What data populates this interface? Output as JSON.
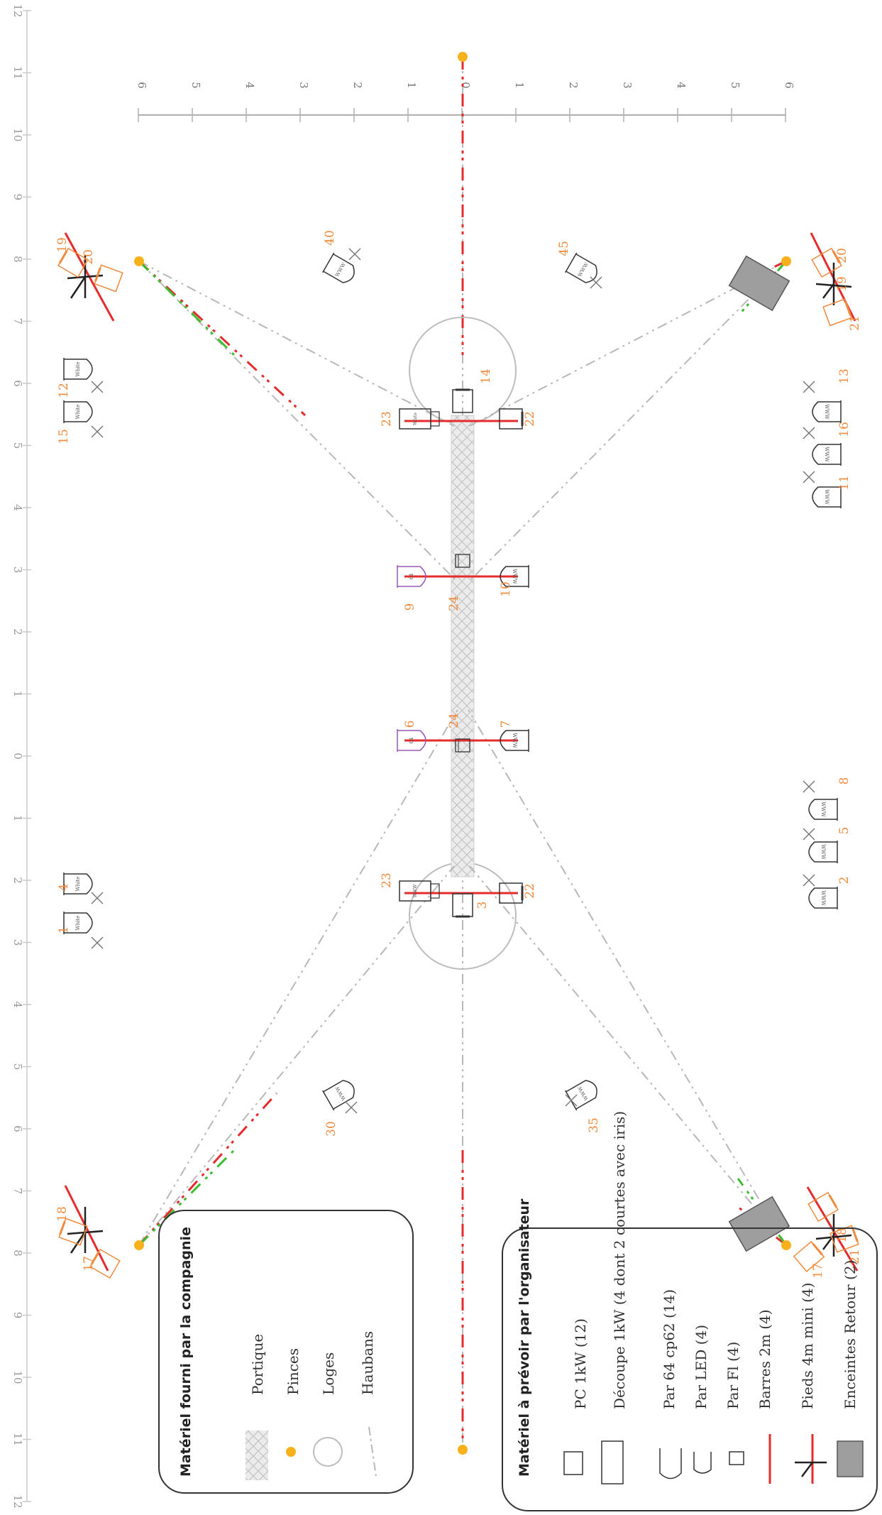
{
  "scale": {
    "main_axis_ticks": [
      "12",
      "11",
      "10",
      "9",
      "8",
      "7",
      "6",
      "5",
      "4",
      "3",
      "2",
      "1",
      "0",
      "1",
      "2",
      "3",
      "4",
      "5",
      "6",
      "7",
      "8",
      "9",
      "10",
      "11",
      "12"
    ],
    "cross_axis_ticks": [
      "6",
      "5",
      "4",
      "3",
      "2",
      "1",
      "0",
      "1",
      "2",
      "3",
      "4",
      "5",
      "6"
    ]
  },
  "fixture_numbers": {
    "n1": "1",
    "n2": "2",
    "n3": "3",
    "n4": "4",
    "n5": "5",
    "n6": "6",
    "n7": "7",
    "n8": "8",
    "n9": "9",
    "n10": "10",
    "n11": "11",
    "n12": "12",
    "n13": "13",
    "n14": "14",
    "n15": "15",
    "n16": "16",
    "n17": "17",
    "n18": "18",
    "n19": "19",
    "n20": "20",
    "n21": "21",
    "n22": "22",
    "n23": "23",
    "n24": "24",
    "n30": "30",
    "n35": "35",
    "n40": "40",
    "n45": "45"
  },
  "fixture_labels": {
    "white": "White",
    "warm": "WWW",
    "par": "64"
  },
  "legend_company": {
    "title": "Matériel fourni par la compagnie",
    "items": [
      "Portique",
      "Pinces",
      "Loges",
      "Haubans"
    ]
  },
  "legend_organizer": {
    "title": "Matériel à prévoir par l'organisateur",
    "items": [
      "PC 1kW (12)",
      "Découpe 1kW (4 dont 2 courtes avec iris)",
      "Par 64 cp62 (14)",
      "Par LED (4)",
      "Par Fl (4)",
      "Barres 2m (4)",
      "Pieds 4m mini (4)",
      "Enceintes Retour (2)"
    ]
  },
  "colors": {
    "orange": "#f08a3c",
    "pin": "#f7b21b",
    "red": "#e52b2b",
    "green": "#3cbf2f",
    "grey": "#b5b5b5",
    "purple": "#9b59b6"
  }
}
